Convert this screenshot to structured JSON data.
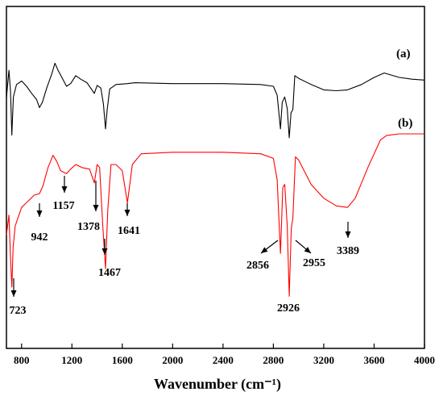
{
  "chart_data": {
    "type": "line",
    "xlabel": "Wavenumber (cm⁻¹)",
    "ylabel": "",
    "xlim": [
      680,
      4000
    ],
    "x_ticks": [
      "800",
      "1200",
      "1600",
      "2000",
      "2400",
      "2800",
      "3200",
      "3600",
      "4000"
    ],
    "x_tick_values": [
      800,
      1200,
      1600,
      2000,
      2400,
      2800,
      3200,
      3600,
      4000
    ],
    "grid": false,
    "series": [
      {
        "name": "(a)",
        "color": "#000000",
        "points": [
          [
            680,
            0.47
          ],
          [
            700,
            0.78
          ],
          [
            712,
            0.55
          ],
          [
            723,
            0.05
          ],
          [
            735,
            0.48
          ],
          [
            760,
            0.62
          ],
          [
            800,
            0.66
          ],
          [
            840,
            0.6
          ],
          [
            880,
            0.52
          ],
          [
            920,
            0.45
          ],
          [
            942,
            0.36
          ],
          [
            965,
            0.42
          ],
          [
            1000,
            0.58
          ],
          [
            1040,
            0.74
          ],
          [
            1065,
            0.86
          ],
          [
            1090,
            0.78
          ],
          [
            1120,
            0.7
          ],
          [
            1157,
            0.6
          ],
          [
            1190,
            0.63
          ],
          [
            1230,
            0.72
          ],
          [
            1270,
            0.68
          ],
          [
            1320,
            0.64
          ],
          [
            1378,
            0.52
          ],
          [
            1400,
            0.61
          ],
          [
            1430,
            0.58
          ],
          [
            1450,
            0.4
          ],
          [
            1467,
            0.12
          ],
          [
            1480,
            0.34
          ],
          [
            1500,
            0.57
          ],
          [
            1550,
            0.62
          ],
          [
            1641,
            0.63
          ],
          [
            1700,
            0.64
          ],
          [
            2000,
            0.63
          ],
          [
            2400,
            0.63
          ],
          [
            2700,
            0.62
          ],
          [
            2800,
            0.6
          ],
          [
            2830,
            0.5
          ],
          [
            2856,
            0.12
          ],
          [
            2870,
            0.42
          ],
          [
            2890,
            0.48
          ],
          [
            2910,
            0.35
          ],
          [
            2926,
            0.02
          ],
          [
            2940,
            0.3
          ],
          [
            2955,
            0.34
          ],
          [
            2970,
            0.72
          ],
          [
            3000,
            0.69
          ],
          [
            3100,
            0.62
          ],
          [
            3200,
            0.56
          ],
          [
            3300,
            0.55
          ],
          [
            3389,
            0.56
          ],
          [
            3500,
            0.62
          ],
          [
            3600,
            0.7
          ],
          [
            3680,
            0.75
          ],
          [
            3800,
            0.7
          ],
          [
            3900,
            0.68
          ],
          [
            4000,
            0.67
          ]
        ]
      },
      {
        "name": "(b)",
        "color": "#ff0000",
        "points": [
          [
            680,
            0.34
          ],
          [
            700,
            0.47
          ],
          [
            712,
            0.2
          ],
          [
            723,
            0.0
          ],
          [
            733,
            0.26
          ],
          [
            750,
            0.4
          ],
          [
            800,
            0.52
          ],
          [
            850,
            0.56
          ],
          [
            900,
            0.6
          ],
          [
            942,
            0.61
          ],
          [
            970,
            0.66
          ],
          [
            1010,
            0.78
          ],
          [
            1050,
            0.86
          ],
          [
            1080,
            0.82
          ],
          [
            1110,
            0.76
          ],
          [
            1157,
            0.74
          ],
          [
            1190,
            0.77
          ],
          [
            1230,
            0.8
          ],
          [
            1280,
            0.78
          ],
          [
            1340,
            0.77
          ],
          [
            1378,
            0.68
          ],
          [
            1400,
            0.8
          ],
          [
            1420,
            0.78
          ],
          [
            1445,
            0.4
          ],
          [
            1467,
            0.12
          ],
          [
            1485,
            0.5
          ],
          [
            1510,
            0.8
          ],
          [
            1550,
            0.8
          ],
          [
            1600,
            0.76
          ],
          [
            1641,
            0.55
          ],
          [
            1680,
            0.8
          ],
          [
            1750,
            0.87
          ],
          [
            2000,
            0.88
          ],
          [
            2400,
            0.88
          ],
          [
            2700,
            0.87
          ],
          [
            2800,
            0.84
          ],
          [
            2830,
            0.7
          ],
          [
            2856,
            0.22
          ],
          [
            2875,
            0.65
          ],
          [
            2890,
            0.67
          ],
          [
            2910,
            0.4
          ],
          [
            2926,
            -0.06
          ],
          [
            2942,
            0.38
          ],
          [
            2955,
            0.45
          ],
          [
            2975,
            0.85
          ],
          [
            3000,
            0.83
          ],
          [
            3100,
            0.67
          ],
          [
            3200,
            0.58
          ],
          [
            3300,
            0.53
          ],
          [
            3389,
            0.52
          ],
          [
            3450,
            0.58
          ],
          [
            3550,
            0.78
          ],
          [
            3650,
            0.96
          ],
          [
            3700,
            0.99
          ],
          [
            3800,
            1.0
          ],
          [
            4000,
            1.0
          ]
        ]
      }
    ],
    "series_labels": [
      "(a)",
      "(b)"
    ],
    "annotations": [
      "723",
      "942",
      "1157",
      "1378",
      "1467",
      "1641",
      "2856",
      "2926",
      "2955",
      "3389"
    ]
  }
}
